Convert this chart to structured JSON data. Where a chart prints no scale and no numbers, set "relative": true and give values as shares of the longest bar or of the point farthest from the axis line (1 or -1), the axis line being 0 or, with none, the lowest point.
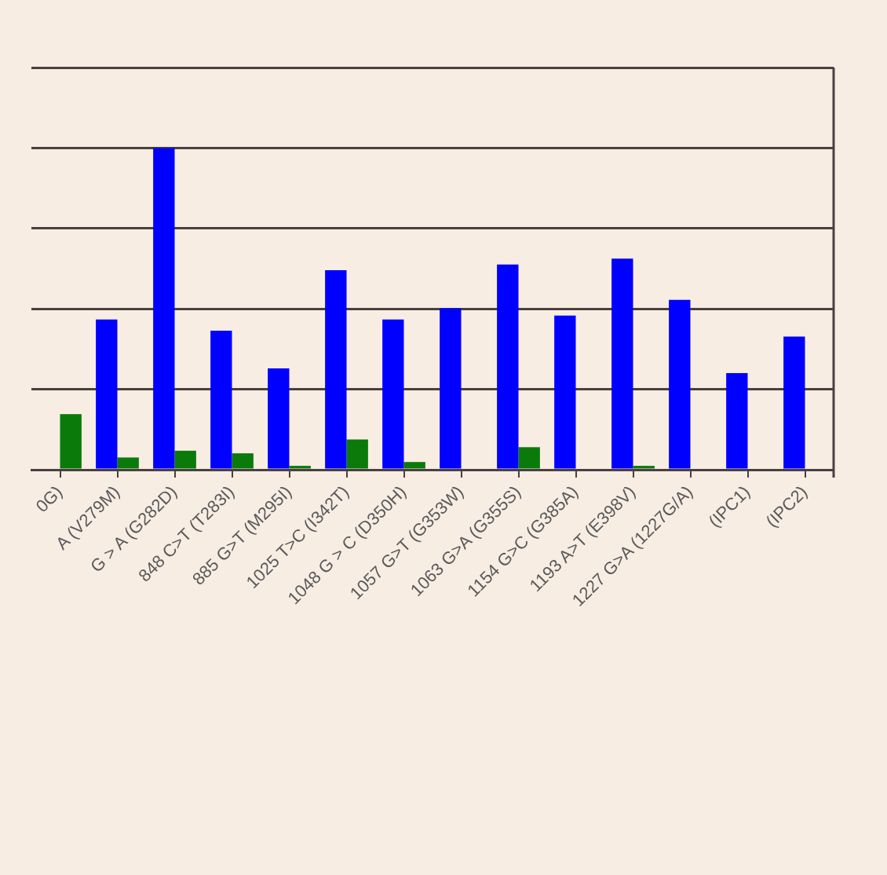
{
  "chart_data": {
    "type": "bar",
    "relative": true,
    "grid": "y",
    "legend": false,
    "categories": [
      "0G)",
      "A (V279M)",
      "G > A (G282D)",
      "848 C>T (T283I)",
      "885 G>T (M295I)",
      "1025 T>C (I342T)",
      "1048 G > C (D350H)",
      "1057 G>T (G353W)",
      "1063 G>A (G355S)",
      "1154 G>C (G385A)",
      "1193 A>T (E398V)",
      "1227 G>A (1227G/A)",
      "(IPC1)",
      "(IPC2)"
    ],
    "series": [
      {
        "color": "#0000ff",
        "values": [
          0,
          0.467,
          1,
          0.432,
          0.315,
          0.62,
          0.467,
          0.502,
          0.638,
          0.479,
          0.656,
          0.528,
          0.3,
          0.414
        ]
      },
      {
        "color": "#0a7a0a",
        "values": [
          0.173,
          0.038,
          0.059,
          0.051,
          0.012,
          0.094,
          0.024,
          0,
          0.07,
          0,
          0.012,
          0,
          0,
          0
        ]
      }
    ]
  }
}
